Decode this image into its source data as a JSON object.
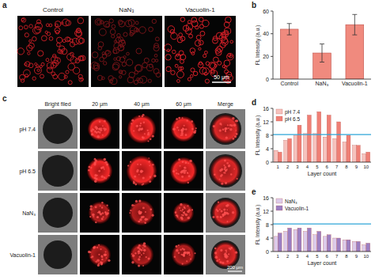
{
  "chart_data": [
    {
      "type": "bar",
      "panel_label": "b",
      "ylabel": "FL Intensity (a.u.)",
      "categories": [
        "Control",
        "NaN₃",
        "Vacuolin-1"
      ],
      "values": [
        44,
        23,
        48
      ],
      "errors": [
        5,
        8,
        9
      ],
      "color": "#f08a7e",
      "ylim": [
        0,
        60
      ],
      "yticks": [
        0,
        20,
        40,
        60
      ]
    },
    {
      "type": "bar",
      "panel_label": "d",
      "xlabel": "Layer count",
      "ylabel": "FL Intensity (a.u.)",
      "categories": [
        "1",
        "2",
        "3",
        "4",
        "5",
        "6",
        "7",
        "8",
        "9",
        "10"
      ],
      "series": [
        {
          "name": "pH 7.4",
          "color": "#f6c2bd",
          "values": [
            3.5,
            6.5,
            8,
            8.5,
            8.5,
            7.5,
            7,
            6,
            5,
            2.5
          ]
        },
        {
          "name": "pH 6.5",
          "color": "#ef7f75",
          "values": [
            3,
            7,
            11,
            14,
            15,
            14,
            12,
            8,
            5,
            3
          ]
        }
      ],
      "threshold": {
        "value": 8.2,
        "color": "#2ea6d8"
      },
      "ylim": [
        0,
        16
      ],
      "yticks": [
        0,
        4,
        8,
        12,
        16
      ],
      "legend": "upper left"
    },
    {
      "type": "bar",
      "panel_label": "e",
      "xlabel": "Layer count",
      "ylabel": "FL Intensity (a.u.)",
      "categories": [
        "1",
        "2",
        "3",
        "4",
        "5",
        "6",
        "7",
        "8",
        "9",
        "10"
      ],
      "series": [
        {
          "name": "NaN₃",
          "color": "#dccbea",
          "values": [
            4.5,
            6,
            6.5,
            6,
            5,
            4.5,
            4,
            3.5,
            3,
            2
          ]
        },
        {
          "name": "Vacuolin-1",
          "color": "#9b7fc2",
          "values": [
            5.5,
            7,
            7,
            7,
            6,
            5,
            4,
            3.5,
            3,
            2.5
          ]
        }
      ],
      "threshold": {
        "value": 8.2,
        "color": "#2ea6d8"
      },
      "ylim": [
        0,
        16
      ],
      "yticks": [
        0,
        4,
        8,
        12,
        16
      ],
      "legend": "upper left"
    }
  ],
  "panels": {
    "a": {
      "label": "a",
      "columns": [
        "Control",
        "NaN₃",
        "Vacuolin-1"
      ],
      "scale_bar": "50 μm"
    },
    "c": {
      "label": "c",
      "columns": [
        "Bright filed",
        "20 μm",
        "40 μm",
        "60 μm",
        "Merge"
      ],
      "rows": [
        "pH 7.4",
        "pH 6.5",
        "NaN₃",
        "Vacuolin-1"
      ],
      "scale_bar": "200 μm"
    }
  }
}
